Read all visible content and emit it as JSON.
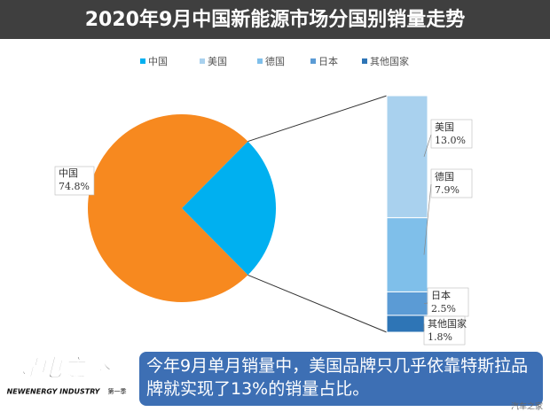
{
  "chart_data": {
    "type": "pie-of-bar",
    "title": "2020年9月中国新能源市场分国别销量走势",
    "categories": [
      "中国",
      "美国",
      "德国",
      "日本",
      "其他国家"
    ],
    "values": [
      74.8,
      13.0,
      7.9,
      2.5,
      1.8
    ],
    "value_labels": [
      "74.8%",
      "13.0%",
      "7.9%",
      "2.5%",
      "1.8%"
    ],
    "colors": [
      "#00b0f0",
      "#a9d1ee",
      "#7fbfea",
      "#5b9bd5",
      "#2e75b6"
    ],
    "pie_colors": [
      "#f7891f",
      "#00b0f0"
    ],
    "legend": "top"
  },
  "caption": "今年9月单月销量中，美国品牌只几乎依靠特斯拉品牌就实现了13%的销量占比。",
  "logo": {
    "title": "寻电之路",
    "subtitle": "NEWENERGY INDUSTRY",
    "season": "第一季"
  },
  "watermark": "汽车之家"
}
